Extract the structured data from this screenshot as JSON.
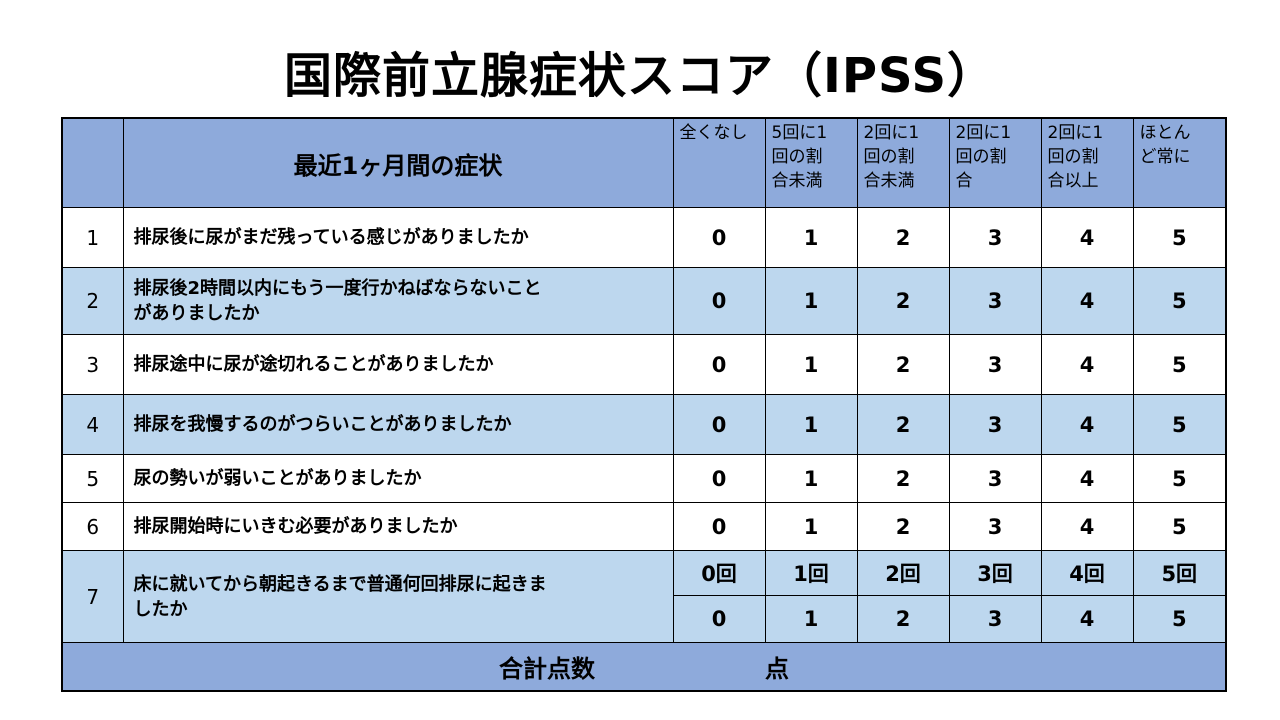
{
  "title": "国際前立腺症状スコア（IPSS）",
  "header": {
    "number": "",
    "symptom": "最近1ヶ月間の症状",
    "options": [
      [
        "全くなし"
      ],
      [
        "5回に1",
        "回の割",
        "合未満"
      ],
      [
        "2回に1",
        "回の割",
        "合未満"
      ],
      [
        "2回に1",
        "回の割",
        "合"
      ],
      [
        "2回に1",
        "回の割",
        "合以上"
      ],
      [
        "ほとん",
        "ど常に"
      ]
    ]
  },
  "questions": [
    {
      "no": "1",
      "lines": [
        "排尿後に尿がまだ残っている感じがありましたか"
      ],
      "scores": [
        "0",
        "1",
        "2",
        "3",
        "4",
        "5"
      ]
    },
    {
      "no": "2",
      "lines": [
        "排尿後2時間以内にもう一度行かねばならないこと",
        "がありましたか"
      ],
      "scores": [
        "0",
        "1",
        "2",
        "3",
        "4",
        "5"
      ]
    },
    {
      "no": "3",
      "lines": [
        "排尿途中に尿が途切れることがありましたか"
      ],
      "scores": [
        "0",
        "1",
        "2",
        "3",
        "4",
        "5"
      ]
    },
    {
      "no": "4",
      "lines": [
        "排尿を我慢するのがつらいことがありましたか"
      ],
      "scores": [
        "0",
        "1",
        "2",
        "3",
        "4",
        "5"
      ]
    },
    {
      "no": "5",
      "lines": [
        "尿の勢いが弱いことがありましたか"
      ],
      "scores": [
        "0",
        "1",
        "2",
        "3",
        "4",
        "5"
      ]
    },
    {
      "no": "6",
      "lines": [
        "排尿開始時にいきむ必要がありましたか"
      ],
      "scores": [
        "0",
        "1",
        "2",
        "3",
        "4",
        "5"
      ]
    }
  ],
  "question7": {
    "no": "7",
    "lines": [
      "床に就いてから朝起きるまで普通何回排尿に起きま",
      "したか"
    ],
    "counts": [
      "0回",
      "1回",
      "2回",
      "3回",
      "4回",
      "5回"
    ],
    "scores": [
      "0",
      "1",
      "2",
      "3",
      "4",
      "5"
    ]
  },
  "total": {
    "label": "合計点数",
    "unit": "点"
  }
}
